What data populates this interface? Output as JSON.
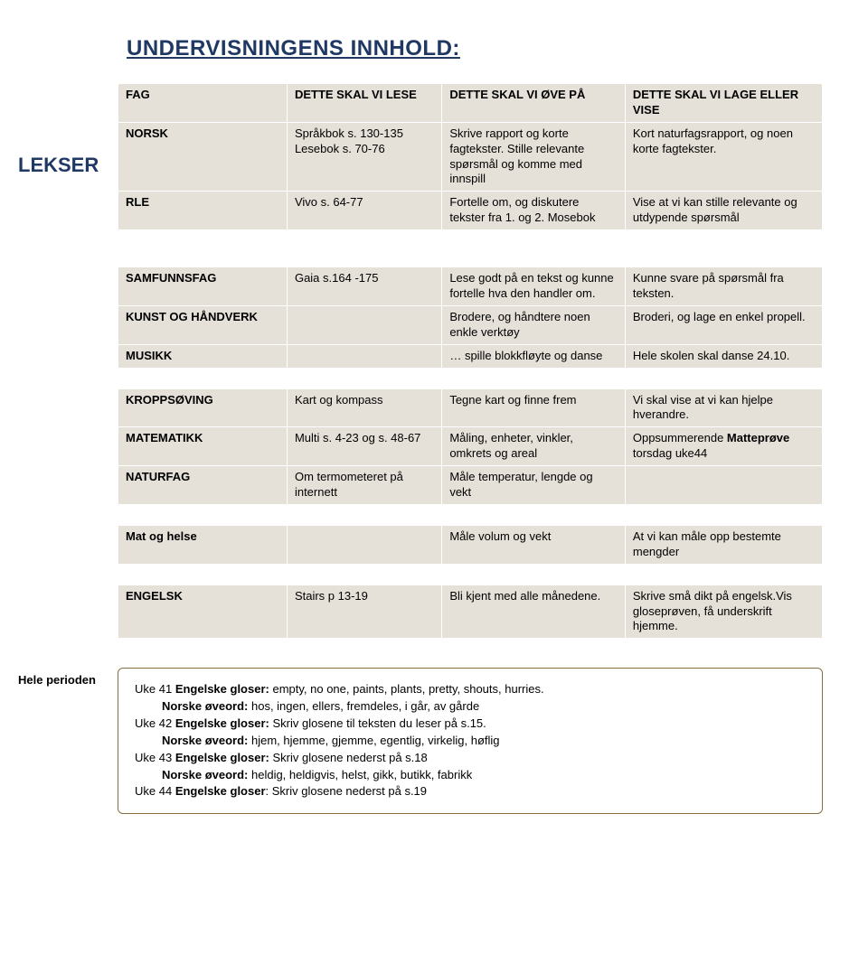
{
  "heading": "UNDERVISNINGENS INNHOLD:",
  "lekser": "LEKSER",
  "colheads": {
    "c0": "FAG",
    "c1": "DETTE SKAL VI LESE",
    "c2": "DETTE SKAL VI ØVE PÅ",
    "c3": "DETTE SKAL VI LAGE ELLER VISE"
  },
  "t1": [
    {
      "sub": "NORSK",
      "lese": "Språkbok s. 130-135 Lesebok s. 70-76",
      "ove": "Skrive rapport og korte fagtekster. Stille relevante spørsmål og komme med innspill",
      "lage": "Kort naturfagsrapport, og noen korte fagtekster."
    },
    {
      "sub": "RLE",
      "lese": "Vivo s. 64-77",
      "ove": "Fortelle om, og diskutere tekster fra 1. og 2. Mosebok",
      "lage": "Vise at vi kan stille relevante og utdypende spørsmål"
    }
  ],
  "t2": [
    {
      "sub": "SAMFUNNSFAG",
      "lese": "Gaia s.164 -175",
      "ove": "Lese godt på en tekst og kunne fortelle hva den handler om.",
      "lage": "Kunne svare på spørsmål fra teksten."
    },
    {
      "sub": "KUNST OG HÅNDVERK",
      "lese": "",
      "ove": "Brodere, og håndtere noen enkle verktøy",
      "lage": "Broderi, og lage en enkel propell."
    },
    {
      "sub": "MUSIKK",
      "lese": "",
      "ove": "… spille blokkfløyte og danse",
      "lage": "Hele skolen skal danse 24.10."
    }
  ],
  "t3": [
    {
      "sub": "KROPPSØVING",
      "lese": "Kart og kompass",
      "ove": "Tegne kart og finne frem",
      "lage": "Vi skal vise at vi kan hjelpe hverandre."
    },
    {
      "sub": "MATEMATIKK",
      "lese": "Multi s. 4-23 og s. 48-67",
      "ove": "Måling, enheter, vinkler, omkrets og areal",
      "lage_html": "Oppsummerende <b>Matteprøve</b> torsdag uke44"
    },
    {
      "sub": "NATURFAG",
      "lese": "Om termometeret på internett",
      "ove": "Måle temperatur, lengde og vekt",
      "lage": ""
    }
  ],
  "t4": [
    {
      "sub": "Mat og helse",
      "lese": "",
      "ove": "Måle volum og vekt",
      "lage": "At vi kan måle opp bestemte mengder"
    }
  ],
  "t5": [
    {
      "sub": "ENGELSK",
      "lese": "Stairs p 13-19",
      "ove": "Bli kjent med alle månedene.",
      "lage": "Skrive små dikt på engelsk.Vis gloseprøven, få underskrift hjemme."
    }
  ],
  "hele_label": "Hele perioden",
  "notes": [
    {
      "pre": "Uke 41 ",
      "bold": "Engelske gloser:",
      "rest": " empty, no one, paints, plants, pretty, shouts, hurries.",
      "indent": false
    },
    {
      "pre": "",
      "bold": "Norske øveord:",
      "rest": " hos, ingen, ellers, fremdeles, i går, av gårde",
      "indent": true
    },
    {
      "pre": "Uke 42 ",
      "bold": "Engelske gloser:",
      "rest": " Skriv glosene til teksten du leser på s.15.",
      "indent": false
    },
    {
      "pre": "",
      "bold": "Norske øveord:",
      "rest": " hjem, hjemme, gjemme, egentlig, virkelig, høflig",
      "indent": true
    },
    {
      "pre": "Uke 43 ",
      "bold": "Engelske gloser:",
      "rest": " Skriv glosene nederst på s.18",
      "indent": false
    },
    {
      "pre": "",
      "bold": "Norske øveord:",
      "rest": " heldig, heldigvis, helst, gikk, butikk, fabrikk",
      "indent": true
    },
    {
      "pre": "Uke 44 ",
      "bold": "Engelske gloser",
      "rest": ": Skriv glosene nederst på s.19",
      "indent": false
    }
  ],
  "col_widths": {
    "c0": "24%",
    "c1": "22%",
    "c2": "26%",
    "c3": "28%"
  },
  "colors": {
    "heading": "#1f3864",
    "table_bg": "#e5e0d8",
    "border": "#ffffff",
    "notes_border": "#8b6f3e"
  }
}
